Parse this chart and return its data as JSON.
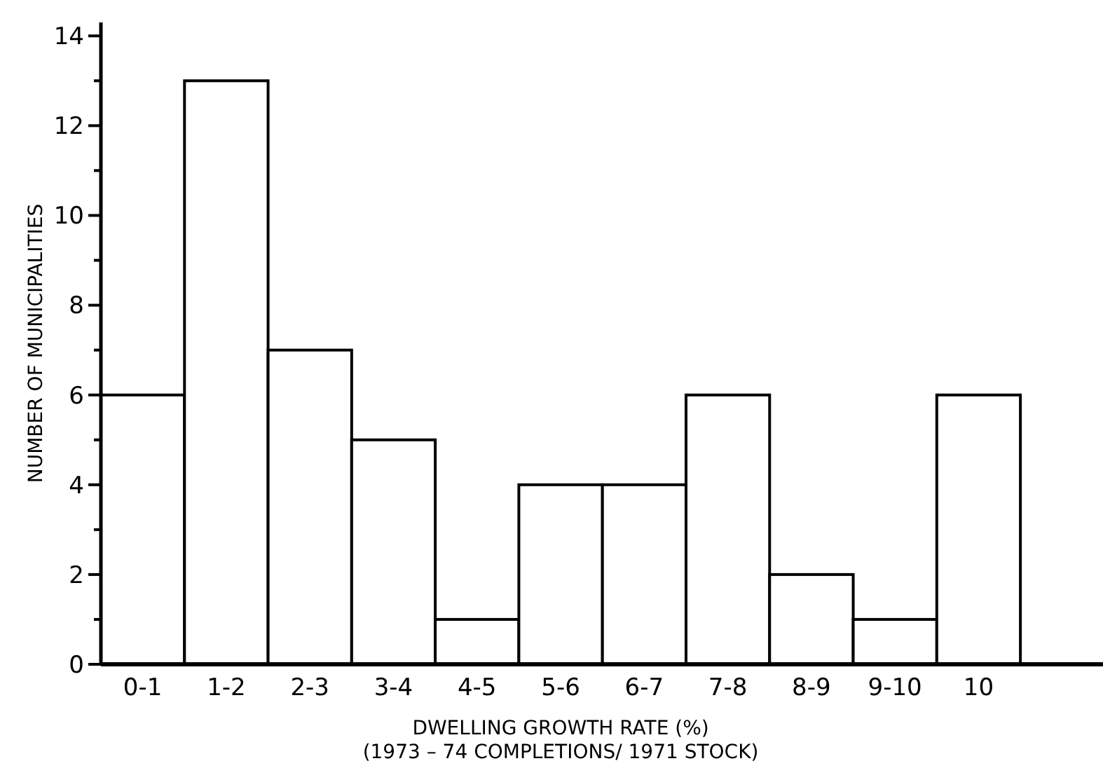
{
  "chart_data": {
    "type": "bar",
    "categories": [
      "0-1",
      "1-2",
      "2-3",
      "3-4",
      "4-5",
      "5-6",
      "6-7",
      "7-8",
      "8-9",
      "9-10",
      "10"
    ],
    "values": [
      6,
      13,
      7,
      5,
      1,
      4,
      4,
      6,
      2,
      1,
      6
    ],
    "color": "#ffffff",
    "xlabel": "DWELLING GROWTH RATE (%)\n(1973 – 74 COMPLETIONS/ 1971 STOCK)",
    "ylabel": "NUMBER OF MUNICIPALITIES",
    "ylim": [
      0,
      14.3
    ],
    "yticks": [
      0,
      {
        "value": 1,
        "label": null
      },
      2,
      {
        "value": 3,
        "label": null
      },
      4,
      {
        "value": 5,
        "label": null
      },
      6,
      {
        "value": 7,
        "label": null
      },
      8,
      {
        "value": 9,
        "label": null
      },
      10,
      {
        "value": 11,
        "label": null
      },
      12,
      {
        "value": 13,
        "label": null
      },
      14
    ],
    "grid": false
  }
}
